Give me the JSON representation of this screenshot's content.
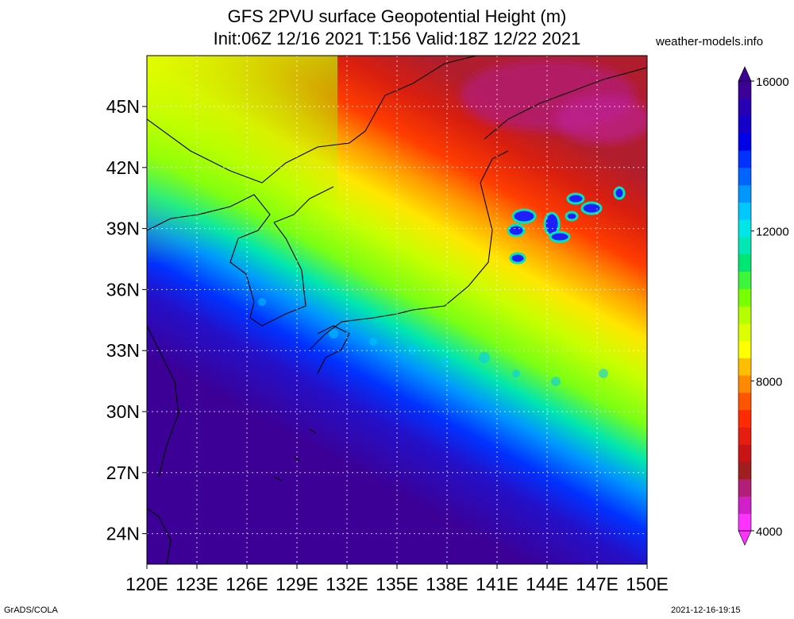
{
  "title": {
    "line1": "GFS 2PVU surface Geopotential Height (m)",
    "line2": "Init:06Z 12/16 2021 T:156 Valid:18Z 12/22 2021"
  },
  "site_label": "weather-models.info",
  "map": {
    "variable": "2PVU surface geopotential height",
    "units": "m",
    "lon_range": [
      120,
      150
    ],
    "lat_range": [
      22.5,
      47.5
    ],
    "lon_ticks": [
      "120E",
      "123E",
      "126E",
      "129E",
      "132E",
      "135E",
      "138E",
      "141E",
      "144E",
      "147E",
      "150E"
    ],
    "lat_ticks": [
      "24N",
      "27N",
      "30N",
      "33N",
      "36N",
      "39N",
      "42N",
      "45N"
    ],
    "gridlines": true,
    "coastlines": true
  },
  "colorbar": {
    "range": [
      4000,
      16000
    ],
    "tick_labels": [
      "4000",
      "8000",
      "12000",
      "16000"
    ],
    "colors": [
      "#ff33ff",
      "#d220c8",
      "#b31e78",
      "#a01e1e",
      "#c81414",
      "#e61e0f",
      "#ff2b00",
      "#ff5500",
      "#ff8a00",
      "#ffbf00",
      "#ffff00",
      "#dcff00",
      "#b4ff00",
      "#78ff00",
      "#3cf53c",
      "#00e673",
      "#00e6b4",
      "#00e6e6",
      "#00c8ff",
      "#0096ff",
      "#0064ff",
      "#0032ff",
      "#0000e6",
      "#1400c8",
      "#2800b4",
      "#3c0096"
    ]
  },
  "footer": {
    "left": "GrADS/COLA",
    "right": "2021-12-16-19:15"
  }
}
